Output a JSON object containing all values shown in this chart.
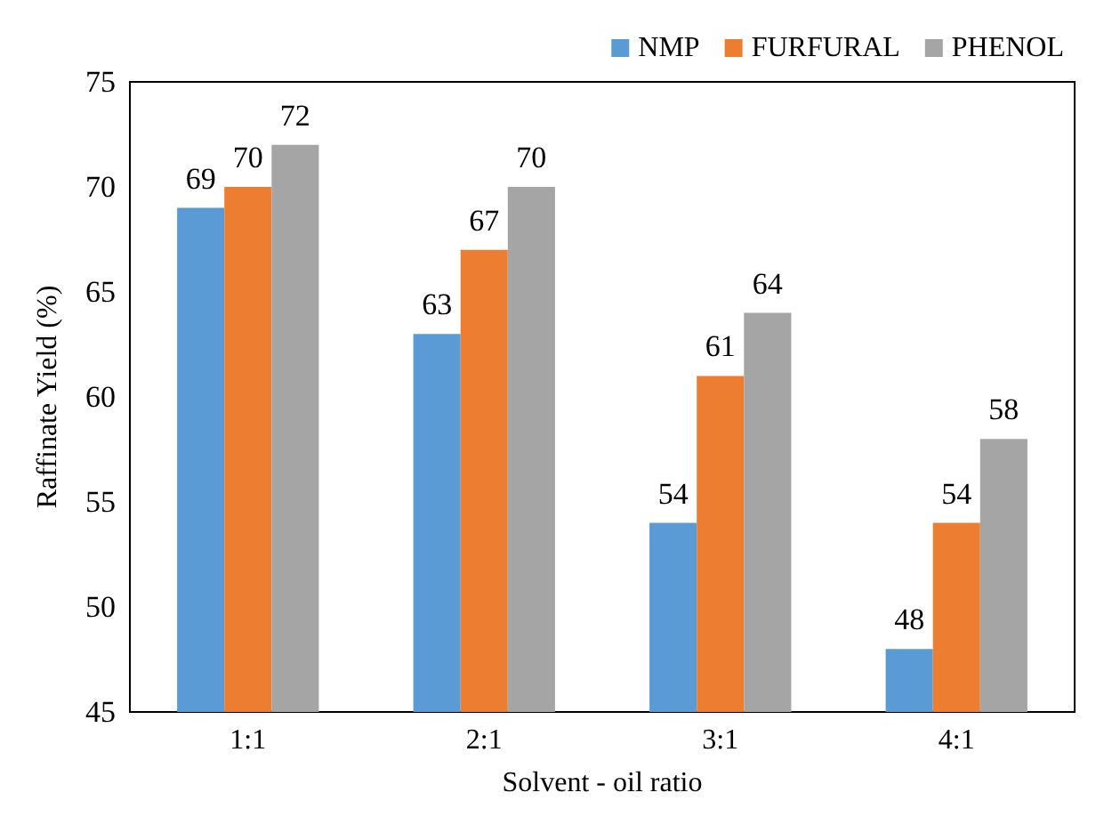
{
  "chart_data": {
    "type": "bar",
    "xlabel": "Solvent - oil ratio",
    "ylabel": "Raffinate Yield (%)",
    "categories": [
      "1:1",
      "2:1",
      "3:1",
      "4:1"
    ],
    "series": [
      {
        "name": "NMP",
        "color": "#5b9bd5",
        "values": [
          69,
          63,
          54,
          48
        ]
      },
      {
        "name": "FURFURAL",
        "color": "#ed7d31",
        "values": [
          70,
          67,
          61,
          54
        ]
      },
      {
        "name": "PHENOL",
        "color": "#a5a5a5",
        "values": [
          72,
          70,
          64,
          58
        ]
      }
    ],
    "ylim": [
      45,
      75
    ],
    "yticks": [
      45,
      50,
      55,
      60,
      65,
      70,
      75
    ],
    "grid": false,
    "legend": "top right",
    "data_labels": true
  }
}
